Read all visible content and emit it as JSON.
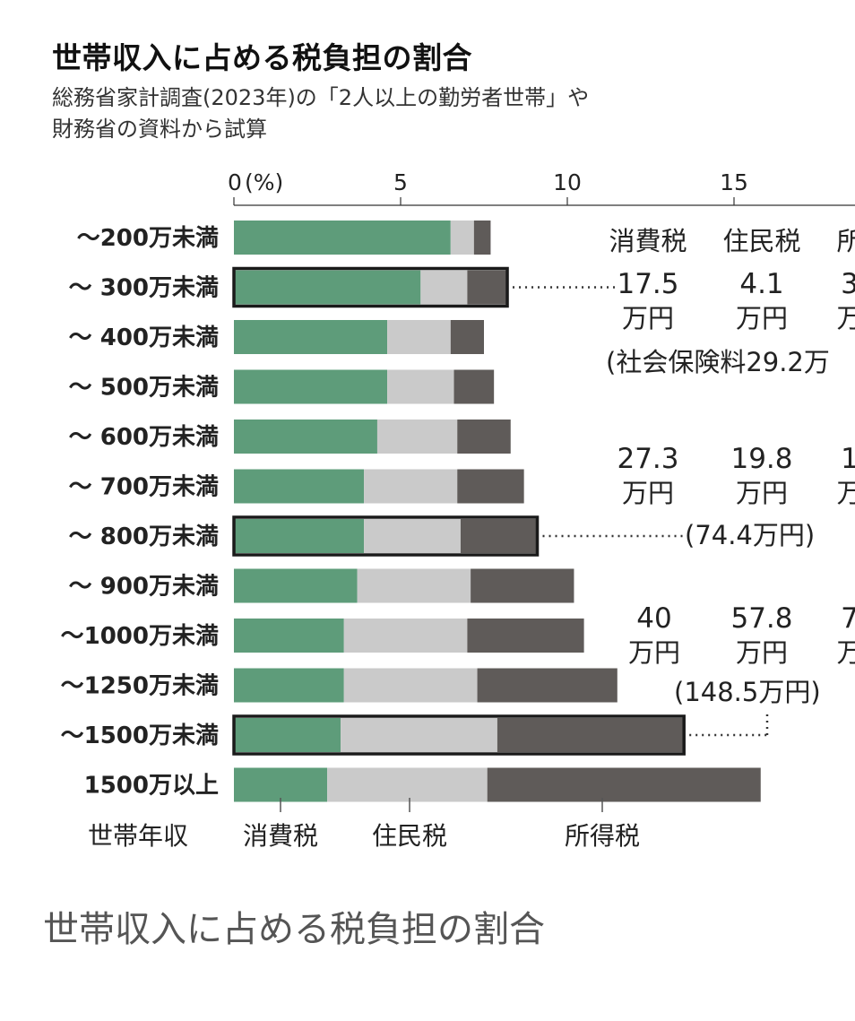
{
  "title": "世帯収入に占める税負担の割合",
  "subtitle_lines": [
    "総務省家計調査(2023年)の「2人以上の勤労者世帯」や",
    "財務省の資料から試算"
  ],
  "caption": "世帯収入に占める税負担の割合",
  "colors": {
    "consumption_tax": "#5e9c7a",
    "resident_tax": "#cacaca",
    "income_tax": "#5f5b59",
    "highlight_border": "#1a1a1a"
  },
  "chart_data": {
    "type": "bar",
    "orientation": "horizontal",
    "stacked": true,
    "title": "世帯収入に占める税負担の割合",
    "subtitle": "総務省家計調査(2023年)の「2人以上の勤労者世帯」や財務省の資料から試算",
    "xlabel": "(%)",
    "ylabel": "世帯年収",
    "x_axis_unit": "(%)",
    "xlim": [
      0,
      18.5
    ],
    "xticks": [
      0,
      5,
      10,
      15
    ],
    "xtick_labels": [
      "0",
      "5",
      "10",
      "15"
    ],
    "grid": false,
    "legend_position": "bottom",
    "categories": [
      "～200万未満",
      "～ 300万未満",
      "～ 400万未満",
      "～ 500万未満",
      "～ 600万未満",
      "～ 700万未満",
      "～ 800万未満",
      "～ 900万未満",
      "～1000万未満",
      "～1250万未満",
      "～1500万未満",
      "1500万以上"
    ],
    "series": [
      {
        "name": "消費税",
        "values": [
          6.5,
          5.6,
          4.6,
          4.6,
          4.3,
          3.9,
          3.9,
          3.7,
          3.3,
          3.3,
          3.2,
          2.8
        ]
      },
      {
        "name": "住民税",
        "values": [
          0.7,
          1.4,
          1.9,
          2.0,
          2.4,
          2.8,
          2.9,
          3.4,
          3.7,
          4.0,
          4.7,
          4.8
        ]
      },
      {
        "name": "所得税",
        "values": [
          0.5,
          1.2,
          1.0,
          1.2,
          1.6,
          2.0,
          2.3,
          3.1,
          3.5,
          4.2,
          5.6,
          8.2
        ]
      }
    ],
    "highlighted_categories": [
      "～ 300万未満",
      "～ 800万未満",
      "～1500万未満"
    ],
    "annotations": [
      {
        "row": "～ 300万未満",
        "headers": [
          "消費税",
          "住民税",
          "所"
        ],
        "amounts": [
          "17.5",
          "4.1",
          "3"
        ],
        "units": [
          "万円",
          "万円",
          "万"
        ],
        "note": "(社会保険料29.2万"
      },
      {
        "row": "～ 800万未満",
        "amounts": [
          "27.3",
          "19.8",
          "1"
        ],
        "units": [
          "万円",
          "万円",
          "万"
        ],
        "note": "(74.4万円)"
      },
      {
        "row": "～1500万未満",
        "amounts": [
          "40",
          "57.8",
          "7"
        ],
        "units": [
          "万円",
          "万円",
          "万"
        ],
        "note": "(148.5万円)"
      }
    ]
  }
}
